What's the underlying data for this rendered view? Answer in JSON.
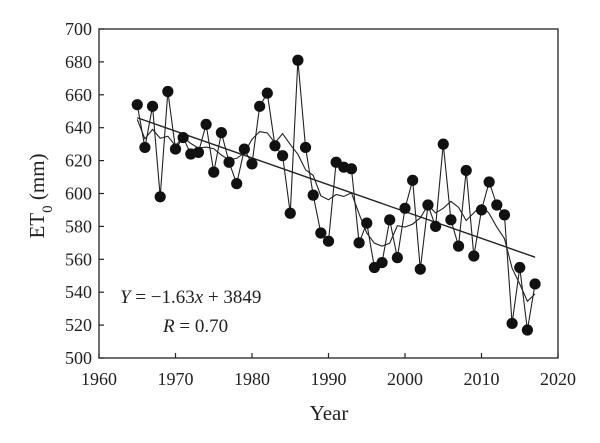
{
  "chart_data": {
    "type": "scatter",
    "xlabel": "Year",
    "ylabel_main": "ET",
    "ylabel_sub": "0",
    "ylabel_unit": " (mm)",
    "xlim": [
      1960,
      2020
    ],
    "ylim": [
      500,
      700
    ],
    "xticks": [
      1960,
      1970,
      1980,
      1990,
      2000,
      2010,
      2020
    ],
    "yticks": [
      500,
      520,
      540,
      560,
      580,
      600,
      620,
      640,
      660,
      680,
      700
    ],
    "grid": false,
    "series": [
      {
        "role": "observed",
        "x": [
          1965,
          1966,
          1967,
          1968,
          1969,
          1970,
          1971,
          1972,
          1973,
          1974,
          1975,
          1976,
          1977,
          1978,
          1979,
          1980,
          1981,
          1982,
          1983,
          1984,
          1985,
          1986,
          1987,
          1988,
          1989,
          1990,
          1991,
          1992,
          1993,
          1994,
          1995,
          1996,
          1997,
          1998,
          1999,
          2000,
          2001,
          2002,
          2003,
          2004,
          2005,
          2006,
          2007,
          2008,
          2009,
          2010,
          2011,
          2012,
          2013,
          2014,
          2015,
          2016,
          2017
        ],
        "y": [
          654,
          628,
          653,
          598,
          662,
          627,
          634,
          624,
          625,
          642,
          613,
          637,
          619,
          606,
          627,
          618,
          653,
          661,
          629,
          623,
          588,
          681,
          628,
          599,
          576,
          571,
          619,
          616,
          615,
          570,
          582,
          555,
          558,
          584,
          561,
          591,
          608,
          554,
          593,
          580,
          630,
          584,
          568,
          614,
          562,
          590,
          607,
          593,
          587,
          521,
          555,
          517,
          545
        ]
      },
      {
        "role": "trend",
        "slope": -1.63,
        "intercept": 3849,
        "x_range": [
          1965,
          2017
        ]
      }
    ],
    "annotations": [
      {
        "role": "equation",
        "prefix": "Y",
        "body": " = −1.63",
        "var": "x",
        "suffix": " + 3849"
      },
      {
        "role": "r",
        "prefix": "R",
        "body": " = 0.70"
      }
    ]
  }
}
